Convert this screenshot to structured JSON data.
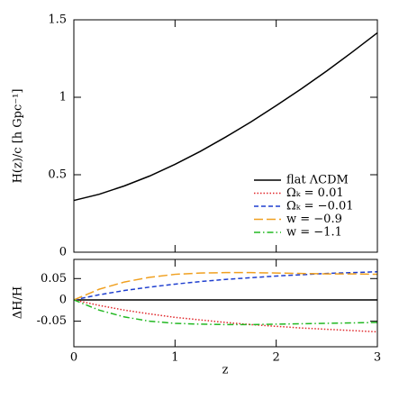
{
  "chart_data": [
    {
      "type": "line",
      "ylabel": "H(z)/c [h Gpc⁻¹]",
      "x": [
        0,
        0.25,
        0.5,
        0.75,
        1,
        1.25,
        1.5,
        1.75,
        2,
        2.25,
        2.5,
        2.75,
        3
      ],
      "series": [
        {
          "color": "#000000",
          "dash": "solid",
          "values": [
            0.334,
            0.374,
            0.428,
            0.492,
            0.567,
            0.651,
            0.743,
            0.841,
            0.946,
            1.055,
            1.17,
            1.291,
            1.416
          ]
        }
      ],
      "xlim": [
        0,
        3
      ],
      "ylim": [
        0,
        1.5
      ],
      "yticks": [
        0,
        0.5,
        1,
        1.5
      ]
    },
    {
      "type": "line",
      "xlabel": "z",
      "ylabel": "ΔH/H",
      "x": [
        0,
        0.25,
        0.5,
        0.75,
        1,
        1.25,
        1.5,
        1.75,
        2,
        2.25,
        2.5,
        2.75,
        3
      ],
      "series": [
        {
          "name": "flat ΛCDM",
          "color": "#000000",
          "dash": "solid",
          "values": [
            0,
            0,
            0,
            0,
            0,
            0,
            0,
            0,
            0,
            0,
            0,
            0,
            0
          ]
        },
        {
          "name": "Ωₖ = 0.01",
          "color": "#e0262a",
          "dash": "dotted",
          "values": [
            0,
            -0.013,
            -0.024,
            -0.033,
            -0.041,
            -0.047,
            -0.053,
            -0.058,
            -0.062,
            -0.066,
            -0.069,
            -0.072,
            -0.075
          ]
        },
        {
          "name": "Ωₖ = −0.01",
          "color": "#1f3fcf",
          "dash": "dashed",
          "values": [
            0,
            0.012,
            0.022,
            0.03,
            0.037,
            0.043,
            0.048,
            0.052,
            0.056,
            0.059,
            0.062,
            0.064,
            0.066
          ]
        },
        {
          "name": "w = −0.9",
          "color": "#f0a020",
          "dash": "longdash",
          "values": [
            0,
            0.025,
            0.042,
            0.053,
            0.06,
            0.063,
            0.064,
            0.064,
            0.063,
            0.062,
            0.061,
            0.061,
            0.06
          ]
        },
        {
          "name": "w = −1.1",
          "color": "#22b822",
          "dash": "dashdot",
          "values": [
            0,
            -0.024,
            -0.04,
            -0.05,
            -0.055,
            -0.057,
            -0.058,
            -0.058,
            -0.057,
            -0.056,
            -0.055,
            -0.054,
            -0.053
          ]
        }
      ],
      "xlim": [
        0,
        3
      ],
      "xticks": [
        0,
        1,
        2,
        3
      ],
      "ylim": [
        -0.11,
        0.095
      ],
      "yticks": [
        -0.05,
        0,
        0.05
      ]
    }
  ]
}
